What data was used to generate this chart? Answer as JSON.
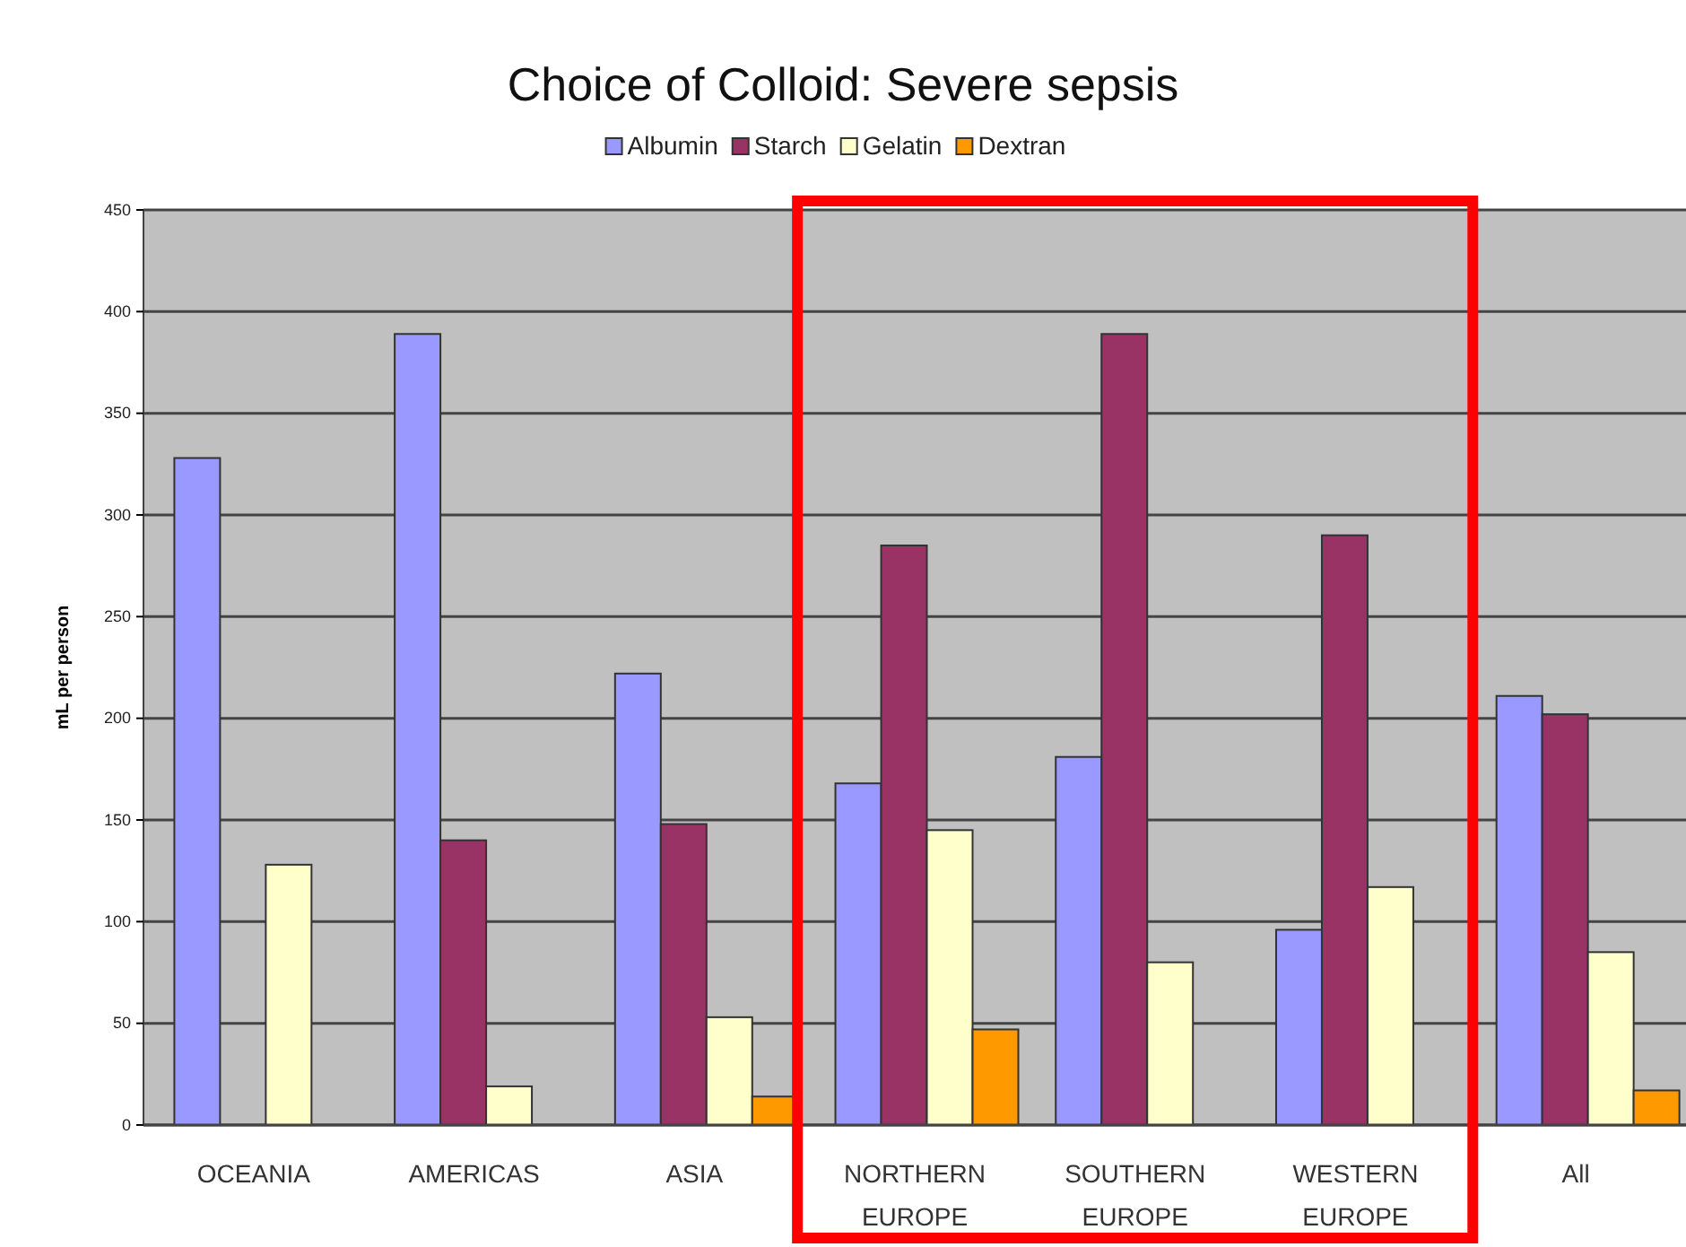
{
  "chart_data": {
    "type": "bar",
    "title": "Choice of Colloid: Severe sepsis",
    "ylabel": "mL per person",
    "categories": [
      "OCEANIA",
      "AMERICAS",
      "ASIA",
      "NORTHERN EUROPE",
      "SOUTHERN EUROPE",
      "WESTERN EUROPE",
      "All"
    ],
    "series": [
      {
        "name": "Albumin",
        "color": "#9999ff",
        "values": [
          328,
          389,
          222,
          168,
          181,
          96,
          211
        ]
      },
      {
        "name": "Starch",
        "color": "#993366",
        "values": [
          null,
          140,
          148,
          285,
          389,
          290,
          202
        ]
      },
      {
        "name": "Gelatin",
        "color": "#ffffcc",
        "values": [
          128,
          19,
          53,
          145,
          80,
          117,
          85
        ]
      },
      {
        "name": "Dextran",
        "color": "#ff9900",
        "values": [
          null,
          null,
          14,
          47,
          null,
          null,
          17
        ]
      }
    ],
    "ylim": [
      0,
      450
    ],
    "yticks": [
      0,
      50,
      100,
      150,
      200,
      250,
      300,
      350,
      400,
      450
    ],
    "grid": "y",
    "legend": "top"
  }
}
